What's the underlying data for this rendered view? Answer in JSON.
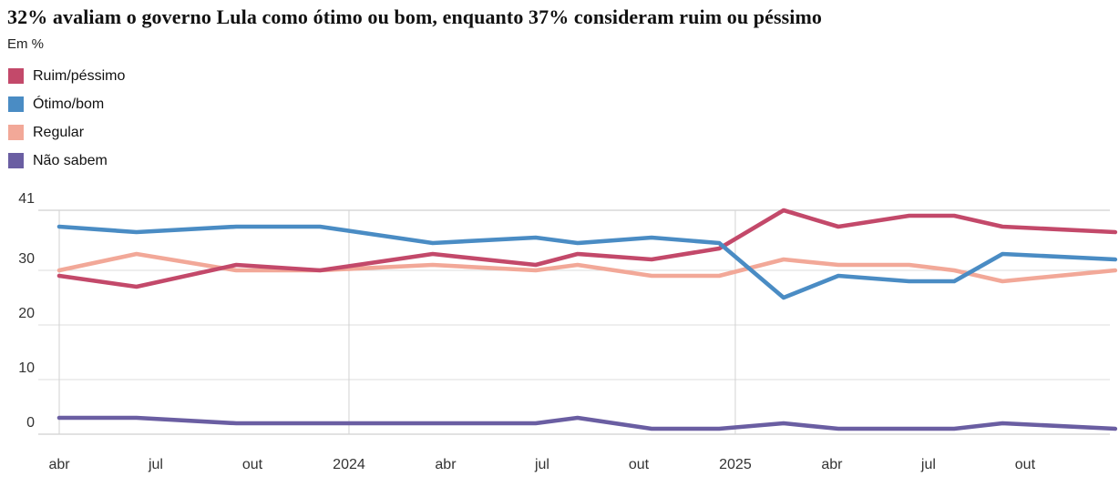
{
  "header": {
    "title": "32% avaliam o governo Lula como ótimo ou bom, enquanto 37% consideram ruim ou péssimo",
    "subtitle": "Em %"
  },
  "legend": {
    "items": [
      {
        "label": "Ruim/péssimo",
        "color": "#c3496a"
      },
      {
        "label": "Ótimo/bom",
        "color": "#4a8cc4"
      },
      {
        "label": "Regular",
        "color": "#f2a898"
      },
      {
        "label": "Não sabem",
        "color": "#6a5ea2"
      }
    ]
  },
  "chart_data": {
    "type": "line",
    "title": "32% avaliam o governo Lula como ótimo ou bom, enquanto 37% consideram ruim ou péssimo",
    "subtitle": "Em %",
    "x_unit": "months since April 2023 (approximate poll dates read from axis)",
    "x": [
      0,
      2.4,
      5.5,
      8.1,
      11.6,
      14.8,
      16.1,
      18.4,
      20.5,
      22.5,
      24.2,
      26.4,
      27.8,
      29.3,
      32.8
    ],
    "series": [
      {
        "name": "Ruim/péssimo",
        "color": "#c3496a",
        "values": [
          29,
          27,
          31,
          30,
          33,
          31,
          33,
          32,
          34,
          41,
          38,
          40,
          40,
          38,
          37
        ]
      },
      {
        "name": "Ótimo/bom",
        "color": "#4a8cc4",
        "values": [
          38,
          37,
          38,
          38,
          35,
          36,
          35,
          36,
          35,
          25,
          29,
          28,
          28,
          33,
          32
        ]
      },
      {
        "name": "Regular",
        "color": "#f2a898",
        "values": [
          30,
          33,
          30,
          30,
          31,
          30,
          31,
          29,
          29,
          32,
          31,
          31,
          30,
          28,
          30
        ]
      },
      {
        "name": "Não sabem",
        "color": "#6a5ea2",
        "values": [
          3,
          3,
          2,
          2,
          2,
          2,
          3,
          1,
          1,
          2,
          1,
          1,
          1,
          2,
          1
        ]
      }
    ],
    "x_ticks": [
      {
        "label": "abr",
        "month": 0
      },
      {
        "label": "jul",
        "month": 3
      },
      {
        "label": "out",
        "month": 6
      },
      {
        "label": "2024",
        "month": 9
      },
      {
        "label": "abr",
        "month": 12
      },
      {
        "label": "jul",
        "month": 15
      },
      {
        "label": "out",
        "month": 18
      },
      {
        "label": "2025",
        "month": 21
      },
      {
        "label": "abr",
        "month": 24
      },
      {
        "label": "jul",
        "month": 27
      },
      {
        "label": "out",
        "month": 30
      }
    ],
    "y_ticks": [
      0,
      10,
      20,
      30,
      41
    ],
    "ylim": [
      0,
      41
    ],
    "xlim_months": [
      0,
      33
    ],
    "grid": true,
    "vertical_gridline_months": [
      0,
      9,
      21
    ],
    "legend_position": "top-left"
  },
  "colors": {
    "grid_major": "#c6c6c6",
    "grid_minor": "#dcdcdc",
    "grid_vertical": "#d2d2d2",
    "tick_text": "#333333",
    "title_text": "#111111"
  }
}
